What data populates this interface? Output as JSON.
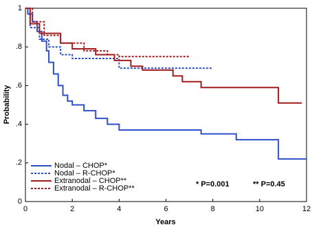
{
  "chart_data": {
    "type": "step",
    "xlabel": "Years",
    "ylabel": "Probability",
    "xlim": [
      0,
      12
    ],
    "ylim": [
      0,
      1
    ],
    "xticks": [
      0,
      2,
      4,
      6,
      8,
      10,
      12
    ],
    "yticks": [
      0,
      {
        "value": 0.2,
        "label": ".2"
      },
      {
        "value": 0.4,
        "label": ".4"
      },
      {
        "value": 0.6,
        "label": ".6"
      },
      {
        "value": 0.8,
        "label": ".8"
      },
      1
    ],
    "legend": "lower left",
    "series": [
      {
        "name": "Nodal – CHOP*",
        "color": "#2e4fc9",
        "dash": "solid",
        "x": [
          0,
          0.1,
          0.3,
          0.5,
          0.7,
          0.9,
          1.0,
          1.2,
          1.4,
          1.6,
          1.8,
          2.0,
          2.5,
          3.0,
          3.5,
          4.0,
          7.5,
          9.0,
          10.8,
          12
        ],
        "values": [
          1,
          0.97,
          0.93,
          0.88,
          0.83,
          0.78,
          0.72,
          0.66,
          0.6,
          0.55,
          0.52,
          0.5,
          0.47,
          0.43,
          0.4,
          0.37,
          0.35,
          0.32,
          0.22,
          0.22
        ]
      },
      {
        "name": "Nodal – R-CHOP*",
        "color": "#2e4fc9",
        "dash": "dotted",
        "x": [
          0,
          0.2,
          0.6,
          1.0,
          1.5,
          2.0,
          4.0,
          8
        ],
        "values": [
          1,
          0.9,
          0.84,
          0.8,
          0.76,
          0.74,
          0.69,
          0.69
        ]
      },
      {
        "name": "Extranodal – CHOP**",
        "color": "#a01c1c",
        "dash": "solid",
        "x": [
          0,
          0.2,
          0.6,
          1.5,
          2.0,
          3.0,
          3.8,
          4.5,
          5.0,
          6.3,
          6.7,
          7.5,
          10.8,
          11.8
        ],
        "values": [
          1,
          0.92,
          0.87,
          0.82,
          0.79,
          0.76,
          0.73,
          0.7,
          0.68,
          0.65,
          0.62,
          0.59,
          0.51,
          0.51
        ]
      },
      {
        "name": "Extranodal – R-CHOP**",
        "color": "#a01c1c",
        "dash": "dotted",
        "x": [
          0,
          0.3,
          0.8,
          1.5,
          2.5,
          3.5,
          4.0,
          7
        ],
        "values": [
          1,
          0.93,
          0.86,
          0.82,
          0.78,
          0.76,
          0.75,
          0.75
        ]
      }
    ],
    "annotations": [
      "* P=0.001",
      "** P=0.45"
    ]
  }
}
